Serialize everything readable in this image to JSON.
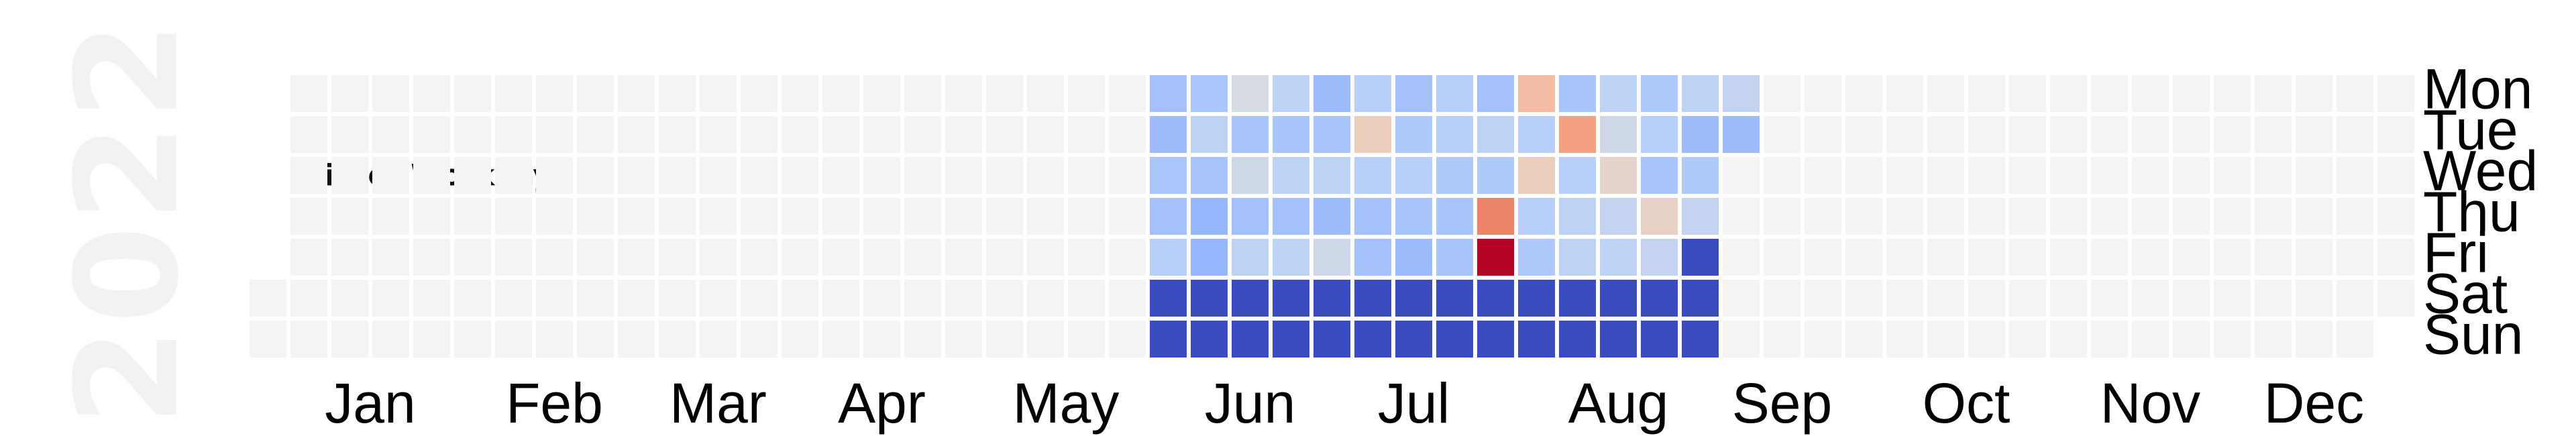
{
  "year_label": "2022",
  "chart_data": {
    "type": "heatmap",
    "title": "Printer Workday",
    "year": 2022,
    "weekday_labels": [
      "Mon",
      "Tue",
      "Wed",
      "Thu",
      "Fri",
      "Sat",
      "Sun"
    ],
    "month_labels": [
      "Jan",
      "Feb",
      "Mar",
      "Apr",
      "May",
      "Jun",
      "Jul",
      "Aug",
      "Sep",
      "Oct",
      "Nov",
      "Dec"
    ],
    "colormap": "coolwarm",
    "value_range": [
      0,
      1
    ],
    "empty_color": "#f4f4f4",
    "start_date": "2022-05-30",
    "days": [
      0.32,
      0.3,
      0.34,
      0.32,
      0.38,
      0.0,
      0.0,
      0.34,
      0.4,
      0.33,
      0.28,
      0.28,
      0.0,
      0.0,
      0.48,
      0.33,
      0.45,
      0.32,
      0.4,
      0.0,
      0.0,
      0.4,
      0.33,
      0.4,
      0.32,
      0.4,
      0.0,
      0.0,
      0.3,
      0.33,
      0.4,
      0.3,
      0.45,
      0.0,
      0.0,
      0.38,
      0.58,
      0.38,
      0.32,
      0.32,
      0.0,
      0.0,
      0.32,
      0.35,
      0.38,
      0.33,
      0.3,
      0.0,
      0.0,
      0.38,
      0.38,
      0.35,
      0.33,
      0.33,
      0.0,
      0.0,
      0.32,
      0.4,
      0.35,
      0.8,
      1.0,
      0.0,
      0.0,
      0.65,
      0.38,
      0.58,
      0.38,
      0.35,
      0.0,
      0.0,
      0.33,
      0.73,
      0.38,
      0.4,
      0.4,
      0.0,
      0.0,
      0.4,
      0.45,
      0.55,
      0.42,
      0.4,
      0.0,
      0.0,
      0.35,
      0.38,
      0.33,
      0.56,
      0.42,
      0.0,
      0.0,
      0.4,
      0.3,
      0.35,
      0.42,
      0.0,
      0.0,
      0.0,
      0.42,
      0.3
    ]
  }
}
